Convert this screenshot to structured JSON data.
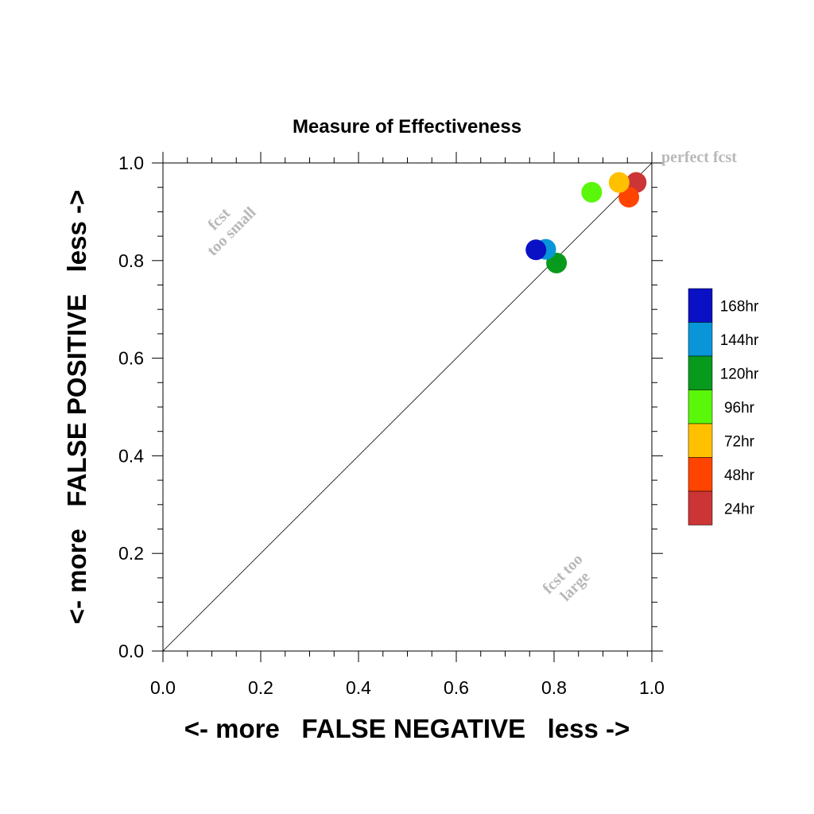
{
  "chart_data": {
    "type": "scatter",
    "title": "Measure of Effectiveness",
    "xlabel": "<- more   FALSE NEGATIVE   less ->",
    "ylabel": "<- more   FALSE POSITIVE   less ->",
    "xlim": [
      0,
      1
    ],
    "ylim": [
      0,
      1
    ],
    "x_ticks": [
      "0.0",
      "0.2",
      "0.4",
      "0.6",
      "0.8",
      "1.0"
    ],
    "y_ticks": [
      "0.0",
      "0.2",
      "0.4",
      "0.6",
      "0.8",
      "1.0"
    ],
    "grid": false,
    "legend_position": "right",
    "annotations": {
      "perfect": "perfect fcst",
      "small_line1": "fcst",
      "small_line2": "too small",
      "large_line1": "fcst too",
      "large_line2": "large"
    },
    "series": [
      {
        "name": "168hr",
        "color": "#0a10c4",
        "x": 0.763,
        "y": 0.822
      },
      {
        "name": "144hr",
        "color": "#0896d8",
        "x": 0.783,
        "y": 0.823
      },
      {
        "name": "120hr",
        "color": "#079a1c",
        "x": 0.805,
        "y": 0.795
      },
      {
        "name": "96hr",
        "color": "#5af70a",
        "x": 0.877,
        "y": 0.94
      },
      {
        "name": "72hr",
        "color": "#ffc000",
        "x": 0.933,
        "y": 0.96
      },
      {
        "name": "48hr",
        "color": "#ff4400",
        "x": 0.953,
        "y": 0.93
      },
      {
        "name": "24hr",
        "color": "#cc3535",
        "x": 0.968,
        "y": 0.96
      }
    ]
  }
}
